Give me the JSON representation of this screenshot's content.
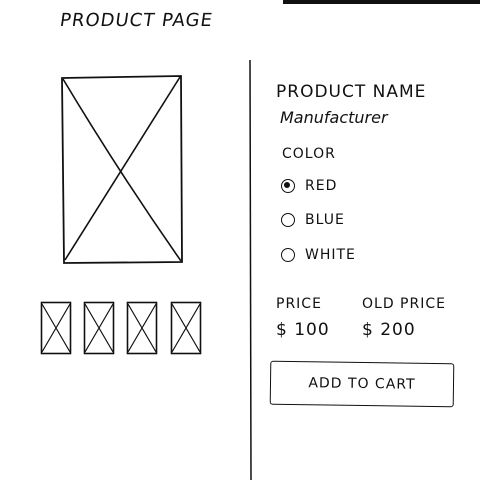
{
  "page": {
    "title": "PRODUCT PAGE"
  },
  "product": {
    "name": "PRODUCT NAME",
    "manufacturer": "Manufacturer",
    "color_label": "COLOR",
    "colors": [
      {
        "label": "RED",
        "selected": true
      },
      {
        "label": "BLUE",
        "selected": false
      },
      {
        "label": "WHITE",
        "selected": false
      }
    ],
    "price_label": "PRICE",
    "price": "$ 100",
    "old_price_label": "OLD PRICE",
    "old_price": "$ 200",
    "add_to_cart_label": "ADD TO CART"
  },
  "gallery": {
    "main_image": "image-placeholder-icon",
    "thumbnails": [
      "image-placeholder-icon",
      "image-placeholder-icon",
      "image-placeholder-icon",
      "image-placeholder-icon"
    ]
  },
  "colors": {
    "ink": "#111111",
    "background": "#ffffff"
  }
}
